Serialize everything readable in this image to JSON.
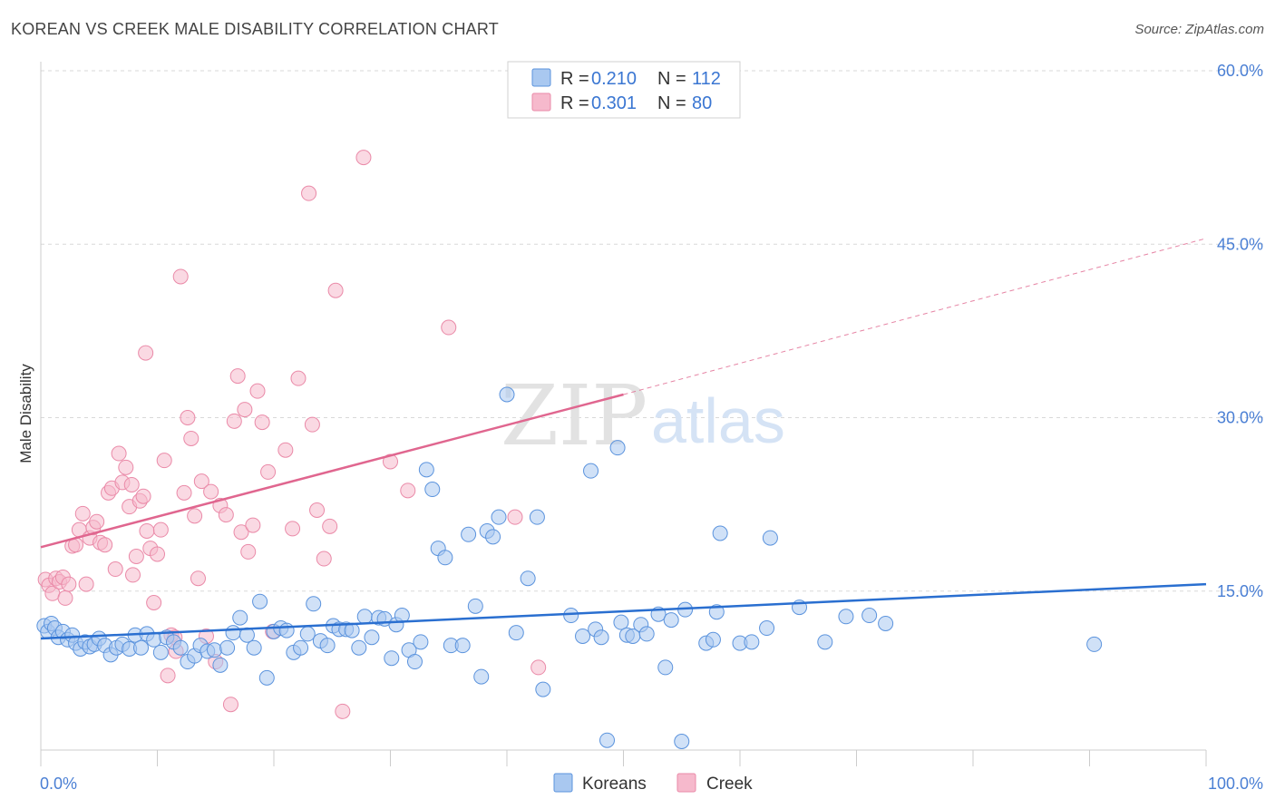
{
  "header": {
    "title": "KOREAN VS CREEK MALE DISABILITY CORRELATION CHART",
    "source": "Source: ZipAtlas.com"
  },
  "watermark": {
    "zip": "ZIP",
    "atlas": "atlas"
  },
  "colors": {
    "koreans_fill": "#a9c8f0",
    "koreans_stroke": "#5b93dd",
    "koreans_line": "#2a6fd0",
    "creek_fill": "#f6b9cc",
    "creek_stroke": "#ea8aa8",
    "creek_line": "#e0668f",
    "grid": "#d9d9d9",
    "tick_label": "#4a7fd4"
  },
  "legend_top": {
    "rows": [
      {
        "r_label": "R = ",
        "r_value": "0.210",
        "n_label": "N = ",
        "n_value": "112"
      },
      {
        "r_label": "R = ",
        "r_value": "0.301",
        "n_label": "N = ",
        "n_value": "80"
      }
    ]
  },
  "legend_bottom": [
    "Koreans",
    "Creek"
  ],
  "chart_data": {
    "type": "scatter",
    "title": "KOREAN VS CREEK MALE DISABILITY CORRELATION CHART",
    "xlabel": "",
    "ylabel": "Male Disability",
    "xlim": [
      0,
      100
    ],
    "ylim": [
      0,
      61
    ],
    "x_tick_labels": [
      {
        "value": 0,
        "label": "0.0%"
      },
      {
        "value": 100,
        "label": "100.0%"
      }
    ],
    "y_tick_labels": [
      {
        "value": 15,
        "label": "15.0%"
      },
      {
        "value": 30,
        "label": "30.0%"
      },
      {
        "value": 45,
        "label": "45.0%"
      },
      {
        "value": 60,
        "label": "60.0%"
      }
    ],
    "x_minor_ticks": [
      0,
      10,
      20,
      30,
      40,
      50,
      60,
      70,
      80,
      90,
      100
    ],
    "grid": true,
    "series": [
      {
        "name": "Koreans",
        "R": 0.21,
        "N": 112,
        "trend": {
          "x": [
            0,
            100
          ],
          "y": [
            10.9,
            15.6
          ],
          "extrapolated": false
        },
        "points": [
          [
            0.3,
            12.0
          ],
          [
            0.6,
            11.5
          ],
          [
            0.9,
            12.2
          ],
          [
            1.2,
            11.8
          ],
          [
            1.5,
            11.0
          ],
          [
            1.9,
            11.5
          ],
          [
            2.3,
            10.8
          ],
          [
            2.7,
            11.2
          ],
          [
            3.0,
            10.5
          ],
          [
            3.4,
            10.0
          ],
          [
            3.8,
            10.6
          ],
          [
            4.2,
            10.2
          ],
          [
            4.6,
            10.4
          ],
          [
            5.0,
            10.9
          ],
          [
            5.5,
            10.3
          ],
          [
            6.0,
            9.5
          ],
          [
            6.5,
            10.1
          ],
          [
            7.0,
            10.4
          ],
          [
            7.6,
            10.0
          ],
          [
            8.1,
            11.2
          ],
          [
            8.6,
            10.1
          ],
          [
            9.1,
            11.3
          ],
          [
            9.7,
            10.8
          ],
          [
            10.3,
            9.7
          ],
          [
            10.8,
            11.0
          ],
          [
            11.4,
            10.6
          ],
          [
            12.0,
            10.1
          ],
          [
            12.6,
            8.9
          ],
          [
            13.2,
            9.4
          ],
          [
            13.7,
            10.3
          ],
          [
            14.3,
            9.8
          ],
          [
            14.9,
            9.9
          ],
          [
            15.4,
            8.6
          ],
          [
            16.0,
            10.1
          ],
          [
            16.5,
            11.4
          ],
          [
            17.1,
            12.7
          ],
          [
            17.7,
            11.2
          ],
          [
            18.3,
            10.1
          ],
          [
            18.8,
            14.1
          ],
          [
            19.4,
            7.5
          ],
          [
            20.0,
            11.5
          ],
          [
            20.6,
            11.8
          ],
          [
            21.1,
            11.6
          ],
          [
            21.7,
            9.7
          ],
          [
            22.3,
            10.1
          ],
          [
            22.9,
            11.3
          ],
          [
            23.4,
            13.9
          ],
          [
            24.0,
            10.7
          ],
          [
            24.6,
            10.3
          ],
          [
            25.1,
            12.0
          ],
          [
            25.6,
            11.7
          ],
          [
            26.2,
            11.7
          ],
          [
            26.7,
            11.6
          ],
          [
            27.3,
            10.1
          ],
          [
            27.8,
            12.8
          ],
          [
            28.4,
            11.0
          ],
          [
            29.0,
            12.7
          ],
          [
            29.5,
            12.6
          ],
          [
            30.1,
            9.2
          ],
          [
            30.5,
            12.1
          ],
          [
            31.0,
            12.9
          ],
          [
            31.6,
            9.9
          ],
          [
            32.1,
            8.9
          ],
          [
            32.6,
            10.6
          ],
          [
            33.1,
            25.5
          ],
          [
            33.6,
            23.8
          ],
          [
            34.1,
            18.7
          ],
          [
            34.7,
            17.9
          ],
          [
            35.2,
            10.3
          ],
          [
            36.2,
            10.3
          ],
          [
            36.7,
            19.9
          ],
          [
            37.3,
            13.7
          ],
          [
            37.8,
            7.6
          ],
          [
            38.3,
            20.2
          ],
          [
            38.8,
            19.7
          ],
          [
            39.3,
            21.4
          ],
          [
            40.0,
            32.0
          ],
          [
            40.8,
            11.4
          ],
          [
            41.8,
            16.1
          ],
          [
            42.6,
            21.4
          ],
          [
            43.1,
            6.5
          ],
          [
            45.5,
            12.9
          ],
          [
            46.5,
            11.1
          ],
          [
            47.2,
            25.4
          ],
          [
            47.6,
            11.7
          ],
          [
            48.1,
            11.0
          ],
          [
            48.6,
            2.1
          ],
          [
            49.5,
            27.4
          ],
          [
            49.8,
            12.3
          ],
          [
            50.3,
            11.2
          ],
          [
            50.8,
            11.1
          ],
          [
            51.5,
            12.1
          ],
          [
            52.0,
            11.3
          ],
          [
            53.0,
            13.0
          ],
          [
            53.6,
            8.4
          ],
          [
            54.1,
            12.5
          ],
          [
            55.0,
            2.0
          ],
          [
            55.3,
            13.4
          ],
          [
            57.1,
            10.5
          ],
          [
            57.7,
            10.8
          ],
          [
            58.0,
            13.2
          ],
          [
            58.3,
            20.0
          ],
          [
            60.0,
            10.5
          ],
          [
            61.0,
            10.6
          ],
          [
            62.3,
            11.8
          ],
          [
            62.6,
            19.6
          ],
          [
            65.1,
            13.6
          ],
          [
            67.3,
            10.6
          ],
          [
            69.1,
            12.8
          ],
          [
            71.1,
            12.9
          ],
          [
            90.4,
            10.4
          ],
          [
            72.5,
            12.2
          ]
        ]
      },
      {
        "name": "Creek",
        "R": 0.301,
        "N": 80,
        "trend": {
          "x": [
            0,
            50
          ],
          "y": [
            18.8,
            32.0
          ],
          "extrapolated_to": [
            100,
            45.5
          ]
        },
        "points": [
          [
            0.4,
            16.0
          ],
          [
            0.7,
            15.5
          ],
          [
            1.0,
            14.8
          ],
          [
            1.3,
            16.1
          ],
          [
            1.6,
            15.8
          ],
          [
            1.9,
            16.2
          ],
          [
            2.1,
            14.4
          ],
          [
            2.4,
            15.6
          ],
          [
            2.7,
            18.9
          ],
          [
            3.0,
            19.0
          ],
          [
            3.3,
            20.3
          ],
          [
            3.6,
            21.7
          ],
          [
            3.9,
            15.6
          ],
          [
            4.2,
            19.6
          ],
          [
            4.5,
            20.5
          ],
          [
            4.8,
            21.0
          ],
          [
            5.1,
            19.2
          ],
          [
            5.5,
            19.0
          ],
          [
            5.8,
            23.5
          ],
          [
            6.1,
            23.9
          ],
          [
            6.4,
            16.9
          ],
          [
            6.7,
            26.9
          ],
          [
            7.0,
            24.4
          ],
          [
            7.3,
            25.7
          ],
          [
            7.6,
            22.3
          ],
          [
            7.9,
            16.4
          ],
          [
            8.2,
            18.0
          ],
          [
            8.5,
            22.8
          ],
          [
            8.8,
            23.2
          ],
          [
            9.1,
            20.2
          ],
          [
            9.4,
            18.7
          ],
          [
            9.7,
            14.0
          ],
          [
            10.0,
            18.2
          ],
          [
            10.3,
            20.3
          ],
          [
            10.6,
            26.3
          ],
          [
            10.9,
            7.7
          ],
          [
            11.2,
            11.2
          ],
          [
            11.5,
            11.0
          ],
          [
            12.0,
            42.2
          ],
          [
            12.3,
            23.5
          ],
          [
            12.6,
            30.0
          ],
          [
            12.9,
            28.2
          ],
          [
            13.2,
            21.5
          ],
          [
            13.5,
            16.1
          ],
          [
            13.8,
            24.5
          ],
          [
            14.2,
            11.1
          ],
          [
            14.6,
            23.6
          ],
          [
            15.0,
            8.9
          ],
          [
            15.4,
            22.4
          ],
          [
            15.9,
            21.6
          ],
          [
            16.3,
            5.2
          ],
          [
            16.6,
            29.7
          ],
          [
            16.9,
            33.6
          ],
          [
            17.2,
            20.1
          ],
          [
            17.5,
            30.7
          ],
          [
            17.8,
            18.4
          ],
          [
            18.2,
            20.7
          ],
          [
            18.6,
            32.3
          ],
          [
            19.0,
            29.6
          ],
          [
            19.5,
            25.3
          ],
          [
            19.9,
            11.5
          ],
          [
            21.0,
            27.2
          ],
          [
            21.6,
            20.4
          ],
          [
            22.1,
            33.4
          ],
          [
            23.0,
            49.4
          ],
          [
            23.3,
            29.4
          ],
          [
            23.7,
            22.0
          ],
          [
            24.3,
            17.8
          ],
          [
            24.8,
            20.6
          ],
          [
            25.3,
            41.0
          ],
          [
            25.9,
            4.6
          ],
          [
            27.7,
            52.5
          ],
          [
            30.0,
            26.2
          ],
          [
            31.5,
            23.7
          ],
          [
            35.0,
            37.8
          ],
          [
            40.7,
            21.4
          ],
          [
            42.7,
            8.4
          ],
          [
            9.0,
            35.6
          ],
          [
            7.8,
            24.2
          ],
          [
            11.6,
            9.8
          ]
        ]
      }
    ]
  }
}
